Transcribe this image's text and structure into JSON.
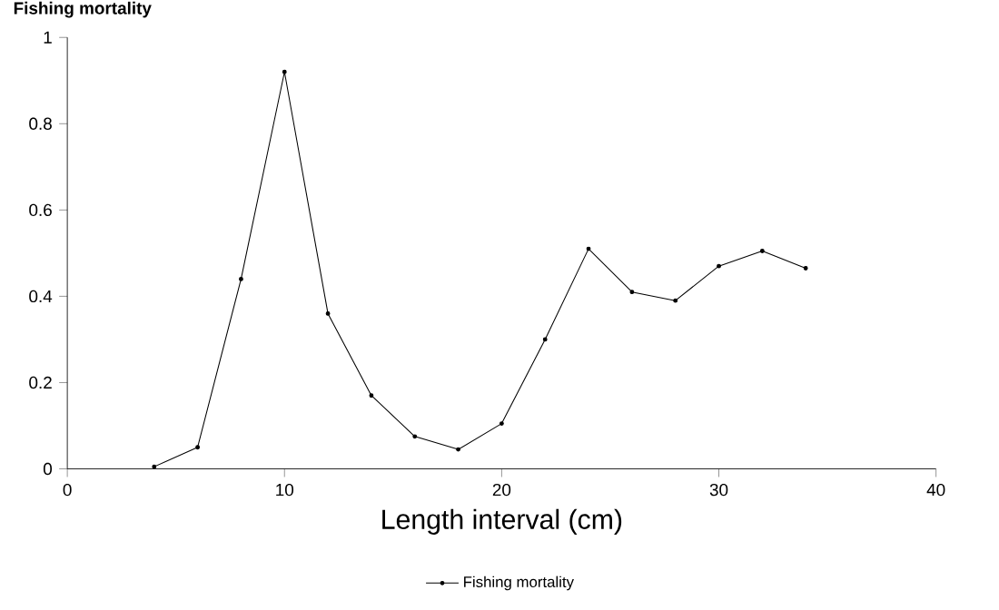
{
  "chart_data": {
    "type": "line",
    "ylabel": "Fishing mortality",
    "xlabel": "Length interval (cm)",
    "x": [
      4,
      6,
      8,
      10,
      12,
      14,
      16,
      18,
      20,
      22,
      24,
      26,
      28,
      30,
      32,
      34
    ],
    "series": [
      {
        "name": "Fishing mortality",
        "color": "#000000",
        "values": [
          0.005,
          0.05,
          0.44,
          0.92,
          0.36,
          0.17,
          0.075,
          0.045,
          0.105,
          0.3,
          0.51,
          0.41,
          0.39,
          0.47,
          0.505,
          0.465
        ]
      }
    ],
    "xlim": [
      0,
      40
    ],
    "xticks": [
      0,
      10,
      20,
      30,
      40
    ],
    "ylim": [
      0,
      1
    ],
    "yticks": [
      0,
      0.2,
      0.4,
      0.6,
      0.8,
      1
    ],
    "legend": "bottom",
    "marker": "circle",
    "line_style": "solid"
  }
}
